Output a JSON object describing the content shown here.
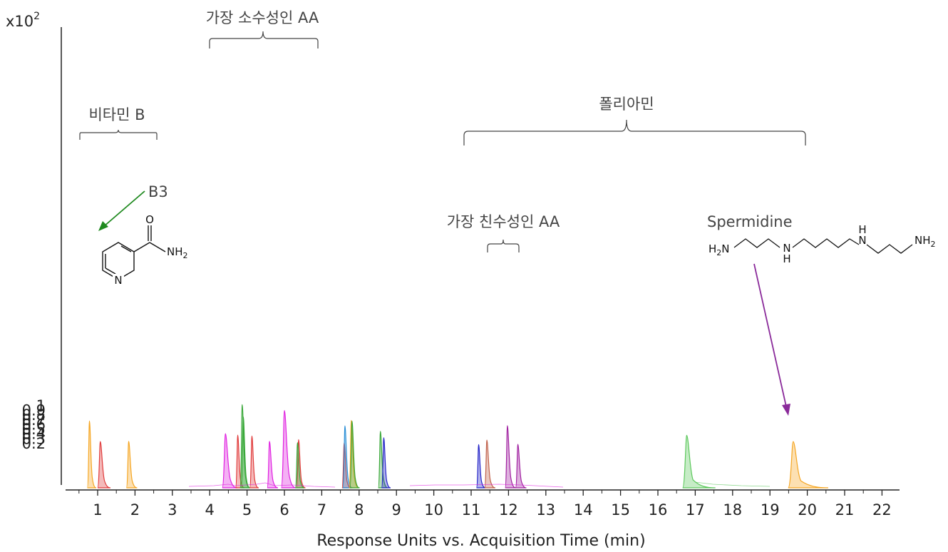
{
  "chart_data": {
    "type": "line",
    "title": "",
    "xlabel": "Response Units vs. Acquisition Time (min)",
    "ylabel": "",
    "y_multiplier": "x10",
    "y_multiplier_exp": "2",
    "xlim": [
      0.1,
      22.4
    ],
    "ylim": [
      0.1,
      1.07
    ],
    "x_ticks": [
      1,
      2,
      3,
      4,
      5,
      6,
      7,
      8,
      9,
      10,
      11,
      12,
      13,
      14,
      15,
      16,
      17,
      18,
      19,
      20,
      21,
      22
    ],
    "y_ticks": [
      0.2,
      0.3,
      0.4,
      0.5,
      0.6,
      0.7,
      0.8,
      0.9,
      1
    ],
    "y_tick_labels": [
      "0.2",
      "0.3",
      "0.4",
      "0.5",
      "0.6",
      "0.7",
      "0.8",
      "0.9",
      "1"
    ],
    "grid": false,
    "peaks": [
      {
        "x": 0.78,
        "y": 0.665,
        "w": 0.03,
        "color": "#f5a623"
      },
      {
        "x": 1.07,
        "y": 0.23,
        "w": 0.06,
        "color": "#e03a3a"
      },
      {
        "x": 1.83,
        "y": 0.235,
        "w": 0.05,
        "color": "#f5a623"
      },
      {
        "x": 4.42,
        "y": 0.395,
        "w": 0.07,
        "color": "#e020e0"
      },
      {
        "x": 4.75,
        "y": 0.365,
        "w": 0.04,
        "color": "#e03a3a"
      },
      {
        "x": 4.87,
        "y": 1.01,
        "w": 0.045,
        "color": "#3aa83a"
      },
      {
        "x": 4.9,
        "y": 0.75,
        "w": 0.04,
        "color": "#3aa83a"
      },
      {
        "x": 5.13,
        "y": 0.345,
        "w": 0.04,
        "color": "#e03a3a"
      },
      {
        "x": 5.6,
        "y": 0.235,
        "w": 0.05,
        "color": "#e020e0"
      },
      {
        "x": 6.0,
        "y": 0.885,
        "w": 0.07,
        "color": "#e020e0"
      },
      {
        "x": 6.38,
        "y": 0.27,
        "w": 0.04,
        "color": "#e03a3a"
      },
      {
        "x": 6.35,
        "y": 0.205,
        "w": 0.04,
        "color": "#3aa83a"
      },
      {
        "x": 7.6,
        "y": 0.2,
        "w": 0.035,
        "color": "#e03a3a"
      },
      {
        "x": 7.62,
        "y": 0.56,
        "w": 0.045,
        "color": "#2b8fd6"
      },
      {
        "x": 7.79,
        "y": 0.675,
        "w": 0.045,
        "color": "#f5a623"
      },
      {
        "x": 7.81,
        "y": 0.66,
        "w": 0.045,
        "color": "#3aa83a"
      },
      {
        "x": 8.57,
        "y": 0.445,
        "w": 0.045,
        "color": "#3aa83a"
      },
      {
        "x": 8.66,
        "y": 0.31,
        "w": 0.04,
        "color": "#2424c8"
      },
      {
        "x": 11.2,
        "y": 0.165,
        "w": 0.04,
        "color": "#2424c8"
      },
      {
        "x": 11.42,
        "y": 0.26,
        "w": 0.05,
        "color": "#c0604a"
      },
      {
        "x": 11.97,
        "y": 0.565,
        "w": 0.05,
        "color": "#a020a0"
      },
      {
        "x": 12.25,
        "y": 0.17,
        "w": 0.05,
        "color": "#a020a0"
      },
      {
        "x": 16.77,
        "y": 0.36,
        "w": 0.09,
        "color": "#5cc85c"
      },
      {
        "x": 19.62,
        "y": 0.228,
        "w": 0.11,
        "color": "#f5a623"
      }
    ]
  },
  "annotations": {
    "vitamin_b": "비타민 B",
    "b3": "B3",
    "hydrophobic": "가장 소수성인 AA",
    "polyamine": "폴리아민",
    "hydrophilic": "가장 친수성인 AA",
    "spermidine": "Spermidine"
  },
  "chemistry": {
    "nicotinamide_o": "O",
    "nicotinamide_n": "N",
    "nicotinamide_nh2": "NH",
    "nicotinamide_nh2_sub": "2",
    "sp_h2n": "H",
    "sp_h2n_sub": "2",
    "sp_h2n_n": "N",
    "sp_nh_n": "N",
    "sp_nh_h": "H",
    "sp_h_top": "H",
    "sp_n2": "N",
    "sp_nh2": "NH",
    "sp_nh2_sub": "2"
  },
  "colors": {
    "orange": "#f5a623",
    "red": "#e03a3a",
    "green": "#3aa83a",
    "magenta": "#e020e0",
    "blue": "#2b8fd6",
    "navy": "#2424c8",
    "purple": "#a020a0",
    "brown": "#c0604a",
    "arrow_green": "#1f8a1f",
    "arrow_purple": "#8a2a9a"
  }
}
